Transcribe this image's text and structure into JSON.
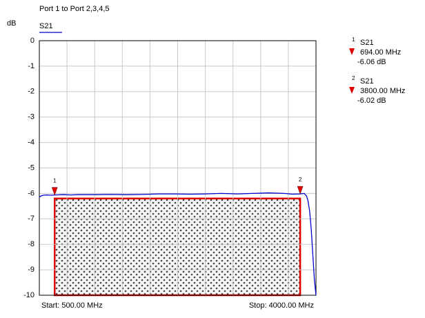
{
  "chart_data": {
    "type": "line",
    "title": "Port 1 to Port 2,3,4,5",
    "y_label": "dB",
    "series": [
      {
        "name": "S21",
        "color": "#0000cc",
        "x": [
          500,
          520,
          550,
          600,
          650,
          700,
          800,
          900,
          1000,
          1200,
          1400,
          1600,
          1800,
          2000,
          2200,
          2400,
          2600,
          2800,
          3000,
          3200,
          3400,
          3600,
          3700,
          3800,
          3850,
          3880,
          3900,
          3920,
          3940,
          3960,
          3980,
          4000
        ],
        "values": [
          -6.15,
          -6.1,
          -6.07,
          -6.06,
          -6.07,
          -6.06,
          -6.05,
          -6.06,
          -6.05,
          -6.05,
          -6.04,
          -6.05,
          -6.04,
          -6.02,
          -6.02,
          -6.03,
          -6.02,
          -6.0,
          -6.02,
          -6.0,
          -5.98,
          -6.0,
          -6.03,
          -6.02,
          -6.0,
          -6.1,
          -6.3,
          -6.7,
          -7.4,
          -8.4,
          -9.4,
          -10
        ]
      }
    ],
    "xlim": [
      500,
      4000
    ],
    "xticks": [
      500,
      850,
      1200,
      1550,
      1900,
      2250,
      2600,
      2950,
      3300,
      3650,
      4000
    ],
    "ylim": [
      -10,
      0
    ],
    "yticks": [
      0,
      -1,
      -2,
      -3,
      -4,
      -5,
      -6,
      -7,
      -8,
      -9,
      -10
    ],
    "grid": true,
    "start_label": "Start: 500.00 MHz",
    "stop_label": "Stop: 4000.00 MHz",
    "mask": {
      "x": [
        694,
        3800
      ],
      "y": [
        -6.2,
        -10
      ],
      "color": "#e00000"
    },
    "markers": [
      {
        "label": "1",
        "name": "S21",
        "x": 694,
        "y": -6.06,
        "x_label": "694.00 MHz",
        "y_label": "-6.06 dB",
        "color": "#e00000"
      },
      {
        "label": "2",
        "name": "S21",
        "x": 3800,
        "y": -6.02,
        "x_label": "3800.00 MHz",
        "y_label": "-6.02 dB",
        "color": "#e00000"
      }
    ]
  }
}
